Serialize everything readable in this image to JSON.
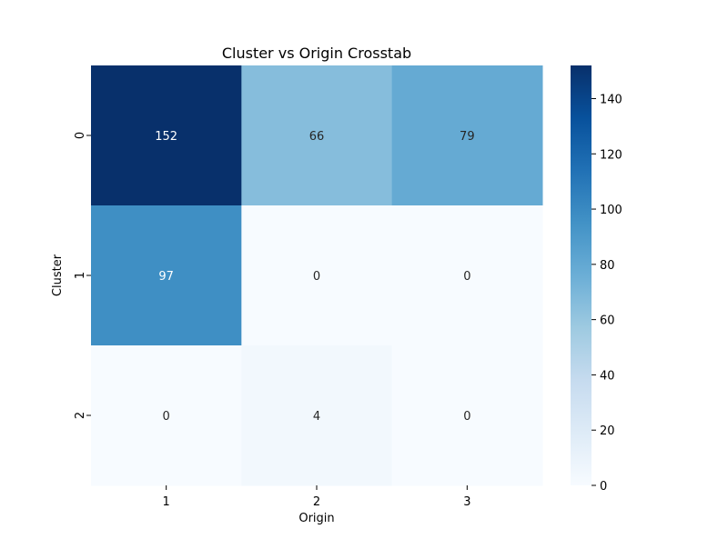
{
  "chart_data": {
    "type": "heatmap",
    "title": "Cluster vs Origin Crosstab",
    "xlabel": "Origin",
    "ylabel": "Cluster",
    "x_categories": [
      "1",
      "2",
      "3"
    ],
    "y_categories": [
      "0",
      "1",
      "2"
    ],
    "values": [
      [
        152,
        66,
        79
      ],
      [
        97,
        0,
        0
      ],
      [
        0,
        4,
        0
      ]
    ],
    "colormap": "Blues",
    "color_range": [
      0,
      152
    ],
    "colorbar_ticks": [
      0,
      20,
      40,
      60,
      80,
      100,
      120,
      140
    ],
    "annotations": true,
    "grid": false
  }
}
